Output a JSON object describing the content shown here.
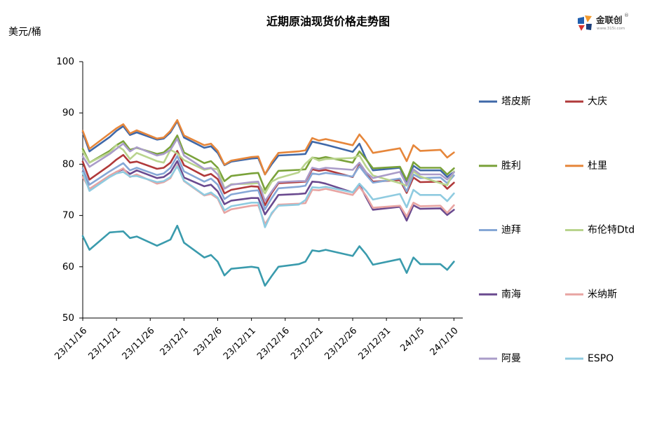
{
  "logo": {
    "name": "金联创",
    "url": "www.315i.com",
    "mark": "®"
  },
  "chart_data": {
    "type": "line",
    "title": "近期原油现货价格走势图",
    "ylabel": "美元/桶",
    "ylim": [
      50,
      100
    ],
    "xlim": [
      "2023-11-16",
      "2024-01-11"
    ],
    "yticks": [
      50,
      60,
      70,
      80,
      90,
      100
    ],
    "xticks": [
      {
        "date": "2023-11-16",
        "label": "23/11/16"
      },
      {
        "date": "2023-11-21",
        "label": "23/11/21"
      },
      {
        "date": "2023-11-26",
        "label": "23/11/26"
      },
      {
        "date": "2023-12-01",
        "label": "23/12/1"
      },
      {
        "date": "2023-12-06",
        "label": "23/12/6"
      },
      {
        "date": "2023-12-11",
        "label": "23/12/11"
      },
      {
        "date": "2023-12-16",
        "label": "23/12/16"
      },
      {
        "date": "2023-12-21",
        "label": "23/12/21"
      },
      {
        "date": "2023-12-26",
        "label": "23/12/26"
      },
      {
        "date": "2023-12-31",
        "label": "23/12/31"
      },
      {
        "date": "2024-01-05",
        "label": "24/1/5"
      },
      {
        "date": "2024-01-10",
        "label": "24/1/10"
      }
    ],
    "grid": false,
    "legend": "right",
    "x": [
      "2023-11-16",
      "2023-11-17",
      "2023-11-20",
      "2023-11-21",
      "2023-11-22",
      "2023-11-23",
      "2023-11-24",
      "2023-11-27",
      "2023-11-28",
      "2023-11-29",
      "2023-11-30",
      "2023-12-01",
      "2023-12-04",
      "2023-12-05",
      "2023-12-06",
      "2023-12-07",
      "2023-12-08",
      "2023-12-11",
      "2023-12-12",
      "2023-12-13",
      "2023-12-14",
      "2023-12-15",
      "2023-12-18",
      "2023-12-19",
      "2023-12-20",
      "2023-12-21",
      "2023-12-22",
      "2023-12-26",
      "2023-12-27",
      "2023-12-28",
      "2023-12-29",
      "2024-01-02",
      "2024-01-03",
      "2024-01-04",
      "2024-01-05",
      "2024-01-08",
      "2024-01-09",
      "2024-01-10"
    ],
    "series": [
      {
        "name": "塔皮斯",
        "color": "#3f68a8",
        "values": [
          86.2,
          82.5,
          85.3,
          86.5,
          87.4,
          85.7,
          86.2,
          84.8,
          85.0,
          86.2,
          88.4,
          85.2,
          83.2,
          83.5,
          82.2,
          79.8,
          80.5,
          81.1,
          81.2,
          78.0,
          80.0,
          81.7,
          81.9,
          82.0,
          84.4,
          84.1,
          83.8,
          82.4,
          84.0,
          81.0,
          78.8,
          79.3,
          76.6,
          79.7,
          78.8,
          78.8,
          77.5,
          78.5
        ]
      },
      {
        "name": "大庆",
        "color": "#b0393a",
        "values": [
          80.5,
          77.0,
          79.8,
          80.9,
          81.8,
          80.3,
          80.5,
          79.1,
          79.3,
          80.3,
          82.6,
          79.8,
          77.7,
          78.1,
          77.1,
          74.3,
          75.0,
          75.7,
          75.6,
          72.0,
          74.4,
          76.3,
          76.5,
          76.6,
          79.0,
          78.7,
          78.9,
          77.5,
          79.9,
          78.1,
          76.6,
          76.9,
          74.4,
          77.4,
          76.5,
          76.6,
          75.2,
          76.4
        ]
      },
      {
        "name": "胜利",
        "color": "#7aa23a",
        "values": [
          83.0,
          80.3,
          82.6,
          83.7,
          84.5,
          82.8,
          83.2,
          82.0,
          82.3,
          83.4,
          85.6,
          82.3,
          80.2,
          80.6,
          79.3,
          76.7,
          77.7,
          78.2,
          78.3,
          75.0,
          77.0,
          78.7,
          78.9,
          79.0,
          81.3,
          81.1,
          81.4,
          80.3,
          82.5,
          80.9,
          79.2,
          79.5,
          76.9,
          80.4,
          79.3,
          79.3,
          78.0,
          79.2
        ]
      },
      {
        "name": "杜里",
        "color": "#e6863a",
        "values": [
          86.5,
          83.0,
          86.0,
          87.0,
          87.8,
          86.0,
          86.6,
          85.0,
          85.2,
          86.5,
          88.6,
          85.6,
          83.7,
          84.0,
          82.6,
          79.9,
          80.7,
          81.4,
          81.5,
          78.0,
          80.4,
          82.2,
          82.5,
          82.7,
          85.1,
          84.6,
          84.9,
          83.7,
          85.8,
          84.2,
          82.2,
          83.1,
          80.6,
          83.7,
          82.6,
          82.8,
          81.3,
          82.3
        ]
      },
      {
        "name": "迪拜",
        "color": "#86a7d6",
        "values": [
          79.2,
          76.0,
          78.6,
          79.4,
          80.2,
          78.8,
          79.3,
          77.9,
          78.2,
          79.3,
          81.6,
          78.6,
          76.6,
          77.2,
          76.0,
          73.2,
          74.1,
          74.8,
          74.9,
          71.2,
          73.4,
          75.3,
          75.6,
          75.8,
          78.2,
          78.0,
          78.3,
          77.6,
          79.6,
          77.9,
          76.4,
          77.2,
          74.7,
          78.0,
          77.3,
          77.4,
          76.3,
          77.8
        ]
      },
      {
        "name": "布伦特Dtd",
        "color": "#b9d48d",
        "values": [
          82.5,
          80.3,
          82.3,
          83.7,
          82.8,
          81.0,
          82.2,
          80.6,
          80.3,
          82.8,
          82.1,
          80.8,
          78.9,
          79.2,
          79.0,
          75.3,
          76.1,
          76.2,
          76.3,
          74.3,
          76.6,
          77.3,
          78.4,
          80.1,
          81.3,
          80.7,
          81.0,
          81.2,
          81.7,
          79.5,
          77.8,
          76.3,
          75.8,
          78.6,
          77.6,
          76.3,
          75.9,
          78.6
        ]
      },
      {
        "name": "南海",
        "color": "#6a4a8f",
        "values": [
          78.5,
          75.0,
          77.7,
          78.5,
          79.0,
          78.1,
          78.8,
          77.3,
          77.5,
          78.4,
          80.6,
          77.4,
          75.7,
          76.0,
          74.7,
          72.2,
          72.9,
          73.4,
          73.4,
          70.2,
          72.1,
          74.0,
          74.2,
          74.3,
          76.6,
          76.5,
          76.2,
          74.5,
          76.0,
          73.5,
          71.1,
          71.7,
          69.0,
          72.0,
          71.3,
          71.4,
          70.1,
          71.1
        ]
      },
      {
        "name": "米纳斯",
        "color": "#e8a4a2",
        "values": [
          77.5,
          75.2,
          77.8,
          78.5,
          79.2,
          77.5,
          78.0,
          76.2,
          76.5,
          77.3,
          79.8,
          76.7,
          73.9,
          74.2,
          73.3,
          70.5,
          71.2,
          71.9,
          72.0,
          68.3,
          70.3,
          72.1,
          72.3,
          72.4,
          75.0,
          74.9,
          75.2,
          74.0,
          75.6,
          73.8,
          71.5,
          71.9,
          69.8,
          72.5,
          71.8,
          71.9,
          70.5,
          72.0
        ]
      },
      {
        "name": "阿曼",
        "color": "#aa9cc9",
        "values": [
          81.5,
          79.5,
          82.0,
          83.0,
          84.0,
          82.5,
          83.3,
          81.7,
          82.0,
          82.8,
          85.0,
          81.7,
          79.1,
          79.3,
          78.0,
          75.2,
          76.0,
          76.5,
          76.6,
          72.8,
          74.7,
          76.5,
          76.7,
          76.7,
          79.3,
          79.0,
          79.3,
          78.9,
          80.3,
          78.4,
          77.3,
          78.5,
          76.0,
          79.0,
          78.0,
          78.0,
          77.0,
          78.4
        ]
      },
      {
        "name": "ESPO",
        "color": "#8fcbe0",
        "values": [
          78.4,
          74.8,
          77.5,
          78.2,
          78.5,
          77.6,
          77.7,
          76.5,
          76.7,
          77.5,
          79.6,
          76.8,
          74.0,
          74.5,
          73.5,
          71.0,
          71.8,
          72.5,
          72.5,
          67.7,
          70.5,
          71.9,
          72.1,
          73.0,
          75.5,
          75.4,
          75.6,
          74.5,
          76.2,
          74.8,
          73.1,
          74.2,
          71.6,
          75.0,
          74.0,
          74.0,
          72.8,
          74.3
        ]
      },
      {
        "color": "#3a9bad",
        "values": [
          66.0,
          63.3,
          66.7,
          66.8,
          66.9,
          65.6,
          65.9,
          64.1,
          64.7,
          65.3,
          68.0,
          64.7,
          61.8,
          62.3,
          61.0,
          58.3,
          59.6,
          60.0,
          59.8,
          56.3,
          58.2,
          60.0,
          60.5,
          61.0,
          63.2,
          63.0,
          63.3,
          62.1,
          64.0,
          62.4,
          60.4,
          61.5,
          58.8,
          61.8,
          60.5,
          60.5,
          59.4,
          61.0
        ]
      }
    ]
  }
}
